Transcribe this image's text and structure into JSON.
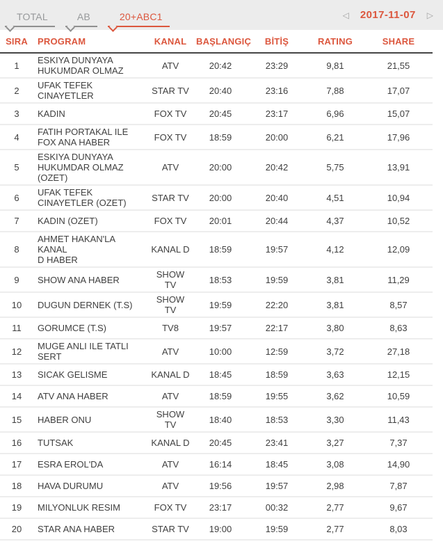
{
  "colors": {
    "accent": "#dc573e",
    "toolbar_background": "#ececec",
    "inactive_tab": "#97999b",
    "header_divider": "#454545",
    "row_divider": "#ededed",
    "body_text": "#3f3f3f"
  },
  "toolbar": {
    "tabs": [
      {
        "label": "TOTAL",
        "active": false
      },
      {
        "label": "AB",
        "active": false
      },
      {
        "label": "20+ABC1",
        "active": true
      }
    ],
    "prev_icon": "◁",
    "next_icon": "▷",
    "date": "2017-11-07"
  },
  "table": {
    "columns": [
      {
        "key": "sira",
        "label": "SIRA",
        "align": "center"
      },
      {
        "key": "program",
        "label": "PROGRAM",
        "align": "left"
      },
      {
        "key": "kanal",
        "label": "KANAL",
        "align": "center"
      },
      {
        "key": "baslangic",
        "label": "BAŞLANGIÇ",
        "align": "center"
      },
      {
        "key": "bitis",
        "label": "BİTİŞ",
        "align": "center"
      },
      {
        "key": "rating",
        "label": "RATING",
        "align": "center"
      },
      {
        "key": "share",
        "label": "SHARE",
        "align": "center"
      }
    ],
    "rows": [
      {
        "sira": 1,
        "program": "ESKIYA DUNYAYA\nHUKUMDAR OLMAZ",
        "kanal": "ATV",
        "baslangic": "20:42",
        "bitis": "23:29",
        "rating": "9,81",
        "share": "21,55"
      },
      {
        "sira": 2,
        "program": "UFAK TEFEK\nCINAYETLER",
        "kanal": "STAR TV",
        "baslangic": "20:40",
        "bitis": "23:16",
        "rating": "7,88",
        "share": "17,07"
      },
      {
        "sira": 3,
        "program": "KADIN",
        "kanal": "FOX TV",
        "baslangic": "20:45",
        "bitis": "23:17",
        "rating": "6,96",
        "share": "15,07"
      },
      {
        "sira": 4,
        "program": "FATIH PORTAKAL ILE\nFOX ANA HABER",
        "kanal": "FOX TV",
        "baslangic": "18:59",
        "bitis": "20:00",
        "rating": "6,21",
        "share": "17,96"
      },
      {
        "sira": 5,
        "program": "ESKIYA DUNYAYA\nHUKUMDAR OLMAZ\n(OZET)",
        "kanal": "ATV",
        "baslangic": "20:00",
        "bitis": "20:42",
        "rating": "5,75",
        "share": "13,91"
      },
      {
        "sira": 6,
        "program": "UFAK TEFEK\nCINAYETLER (OZET)",
        "kanal": "STAR TV",
        "baslangic": "20:00",
        "bitis": "20:40",
        "rating": "4,51",
        "share": "10,94"
      },
      {
        "sira": 7,
        "program": "KADIN (OZET)",
        "kanal": "FOX TV",
        "baslangic": "20:01",
        "bitis": "20:44",
        "rating": "4,37",
        "share": "10,52"
      },
      {
        "sira": 8,
        "program": "AHMET HAKAN'LA KANAL\nD HABER",
        "kanal": "KANAL D",
        "baslangic": "18:59",
        "bitis": "19:57",
        "rating": "4,12",
        "share": "12,09"
      },
      {
        "sira": 9,
        "program": "SHOW ANA HABER",
        "kanal": "SHOW TV",
        "baslangic": "18:53",
        "bitis": "19:59",
        "rating": "3,81",
        "share": "11,29"
      },
      {
        "sira": 10,
        "program": "DUGUN DERNEK (T.S)",
        "kanal": "SHOW TV",
        "baslangic": "19:59",
        "bitis": "22:20",
        "rating": "3,81",
        "share": "8,57"
      },
      {
        "sira": 11,
        "program": "GORUMCE (T.S)",
        "kanal": "TV8",
        "baslangic": "19:57",
        "bitis": "22:17",
        "rating": "3,80",
        "share": "8,63"
      },
      {
        "sira": 12,
        "program": "MUGE ANLI ILE TATLI\nSERT",
        "kanal": "ATV",
        "baslangic": "10:00",
        "bitis": "12:59",
        "rating": "3,72",
        "share": "27,18"
      },
      {
        "sira": 13,
        "program": "SICAK GELISME",
        "kanal": "KANAL D",
        "baslangic": "18:45",
        "bitis": "18:59",
        "rating": "3,63",
        "share": "12,15"
      },
      {
        "sira": 14,
        "program": "ATV ANA HABER",
        "kanal": "ATV",
        "baslangic": "18:59",
        "bitis": "19:55",
        "rating": "3,62",
        "share": "10,59"
      },
      {
        "sira": 15,
        "program": "HABER ONU",
        "kanal": "SHOW TV",
        "baslangic": "18:40",
        "bitis": "18:53",
        "rating": "3,30",
        "share": "11,43"
      },
      {
        "sira": 16,
        "program": "TUTSAK",
        "kanal": "KANAL D",
        "baslangic": "20:45",
        "bitis": "23:41",
        "rating": "3,27",
        "share": "7,37"
      },
      {
        "sira": 17,
        "program": "ESRA EROL'DA",
        "kanal": "ATV",
        "baslangic": "16:14",
        "bitis": "18:45",
        "rating": "3,08",
        "share": "14,90"
      },
      {
        "sira": 18,
        "program": "HAVA DURUMU",
        "kanal": "ATV",
        "baslangic": "19:56",
        "bitis": "19:57",
        "rating": "2,98",
        "share": "7,87"
      },
      {
        "sira": 19,
        "program": "MILYONLUK RESIM",
        "kanal": "FOX TV",
        "baslangic": "23:17",
        "bitis": "00:32",
        "rating": "2,77",
        "share": "9,67"
      },
      {
        "sira": 20,
        "program": "STAR ANA HABER",
        "kanal": "STAR TV",
        "baslangic": "19:00",
        "bitis": "19:59",
        "rating": "2,77",
        "share": "8,03"
      }
    ]
  }
}
